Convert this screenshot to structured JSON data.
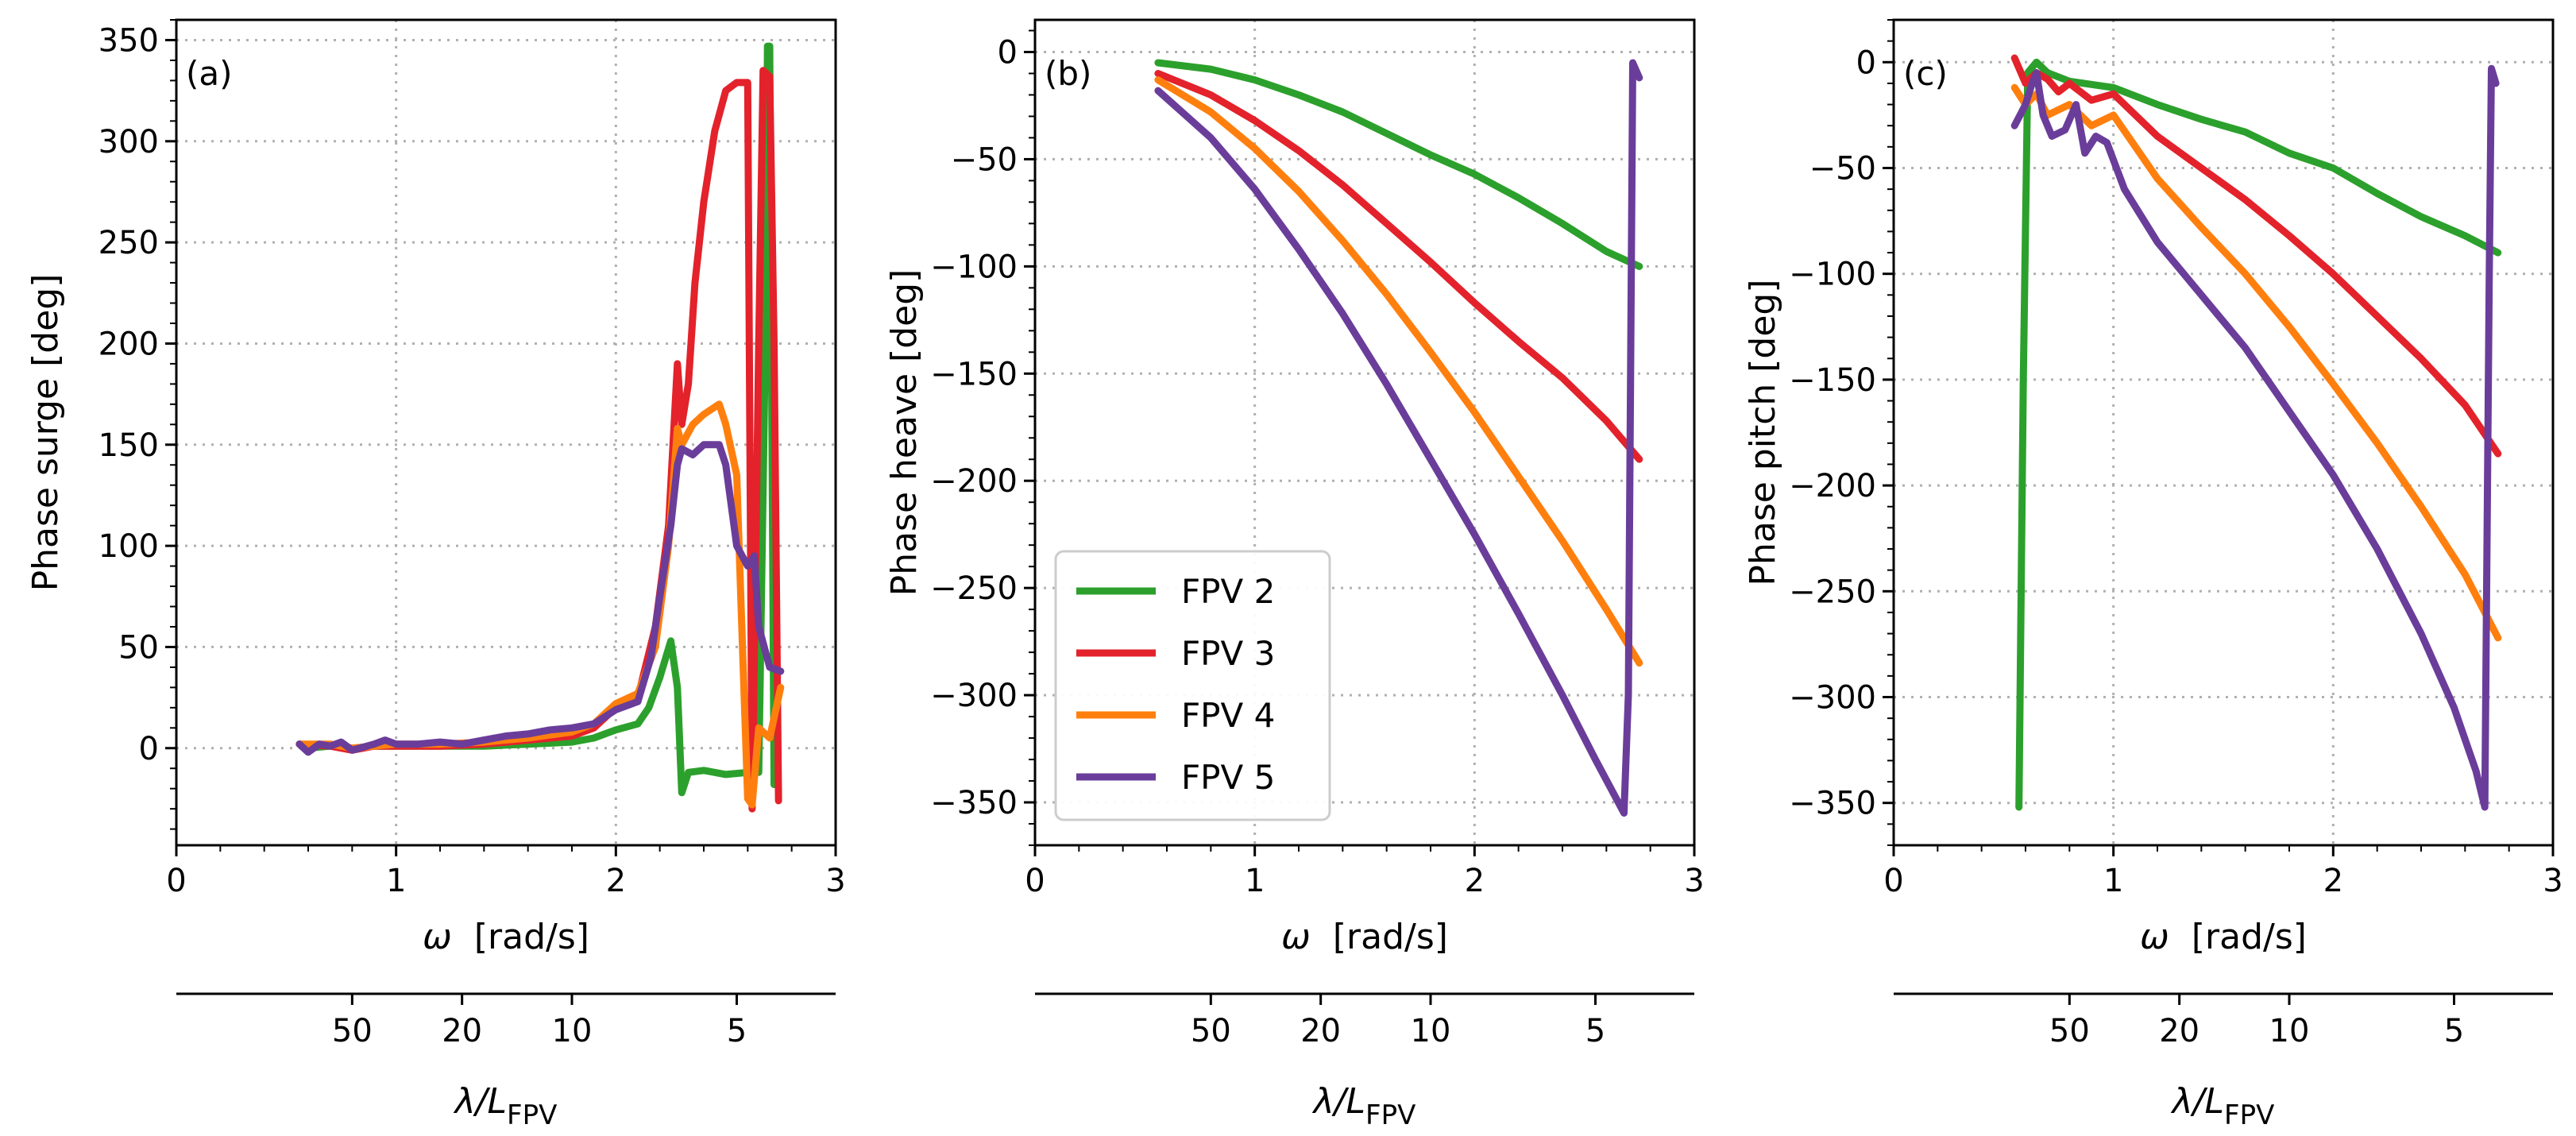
{
  "chart_data": [
    {
      "type": "line",
      "panel_label": "(a)",
      "ylabel": "Phase surge [deg]",
      "xlabel_symbol": "ω",
      "xlabel_unit": "[rad/s]",
      "secondary_xlabel_main": "λ/L",
      "secondary_xlabel_sub": "FPV",
      "xlim": [
        0,
        3
      ],
      "ylim": [
        -48,
        360
      ],
      "xticks": [
        0,
        1,
        2,
        3
      ],
      "yticks": [
        0,
        50,
        100,
        150,
        200,
        250,
        300,
        350
      ],
      "secondary_ticks": [
        {
          "label": "50",
          "omega": 0.8
        },
        {
          "label": "20",
          "omega": 1.3
        },
        {
          "label": "10",
          "omega": 1.8
        },
        {
          "label": "5",
          "omega": 2.55
        }
      ],
      "grid": true,
      "series": [
        {
          "name": "FPV 2",
          "points": [
            [
              0.56,
              2
            ],
            [
              0.6,
              0
            ],
            [
              0.7,
              1
            ],
            [
              0.8,
              0
            ],
            [
              0.9,
              1
            ],
            [
              1.0,
              1
            ],
            [
              1.2,
              1
            ],
            [
              1.4,
              1
            ],
            [
              1.6,
              2
            ],
            [
              1.8,
              3
            ],
            [
              1.9,
              5
            ],
            [
              2.0,
              9
            ],
            [
              2.1,
              12
            ],
            [
              2.15,
              20
            ],
            [
              2.2,
              35
            ],
            [
              2.25,
              53
            ],
            [
              2.28,
              30
            ],
            [
              2.3,
              -22
            ],
            [
              2.33,
              -12
            ],
            [
              2.4,
              -11
            ],
            [
              2.5,
              -13
            ],
            [
              2.6,
              -12
            ],
            [
              2.65,
              -12
            ],
            [
              2.68,
              200
            ],
            [
              2.69,
              347
            ],
            [
              2.7,
              347
            ],
            [
              2.72,
              -18
            ]
          ]
        },
        {
          "name": "FPV 3",
          "points": [
            [
              0.56,
              2
            ],
            [
              0.7,
              1
            ],
            [
              0.8,
              -1
            ],
            [
              0.9,
              1
            ],
            [
              1.0,
              1
            ],
            [
              1.2,
              1
            ],
            [
              1.4,
              2
            ],
            [
              1.6,
              4
            ],
            [
              1.8,
              6
            ],
            [
              1.9,
              10
            ],
            [
              2.0,
              20
            ],
            [
              2.1,
              25
            ],
            [
              2.18,
              60
            ],
            [
              2.24,
              110
            ],
            [
              2.28,
              190
            ],
            [
              2.3,
              160
            ],
            [
              2.33,
              180
            ],
            [
              2.36,
              230
            ],
            [
              2.4,
              270
            ],
            [
              2.45,
              305
            ],
            [
              2.5,
              325
            ],
            [
              2.55,
              329
            ],
            [
              2.6,
              329
            ],
            [
              2.62,
              -30
            ],
            [
              2.65,
              200
            ],
            [
              2.67,
              335
            ],
            [
              2.7,
              332
            ],
            [
              2.72,
              200
            ],
            [
              2.74,
              -26
            ]
          ]
        },
        {
          "name": "FPV 4",
          "points": [
            [
              0.56,
              2
            ],
            [
              0.7,
              2
            ],
            [
              0.8,
              0
            ],
            [
              0.9,
              1
            ],
            [
              1.0,
              2
            ],
            [
              1.2,
              2
            ],
            [
              1.4,
              3
            ],
            [
              1.6,
              5
            ],
            [
              1.8,
              8
            ],
            [
              1.9,
              12
            ],
            [
              2.0,
              22
            ],
            [
              2.1,
              27
            ],
            [
              2.18,
              50
            ],
            [
              2.24,
              100
            ],
            [
              2.28,
              158
            ],
            [
              2.3,
              150
            ],
            [
              2.35,
              160
            ],
            [
              2.4,
              165
            ],
            [
              2.47,
              170
            ],
            [
              2.5,
              160
            ],
            [
              2.55,
              135
            ],
            [
              2.57,
              70
            ],
            [
              2.6,
              -25
            ],
            [
              2.62,
              -28
            ],
            [
              2.65,
              10
            ],
            [
              2.7,
              5
            ],
            [
              2.75,
              30
            ]
          ]
        },
        {
          "name": "FPV 5",
          "points": [
            [
              0.56,
              2
            ],
            [
              0.6,
              -2
            ],
            [
              0.65,
              2
            ],
            [
              0.7,
              1
            ],
            [
              0.75,
              3
            ],
            [
              0.8,
              -1
            ],
            [
              0.9,
              2
            ],
            [
              0.95,
              4
            ],
            [
              1.0,
              2
            ],
            [
              1.1,
              2
            ],
            [
              1.2,
              3
            ],
            [
              1.3,
              2
            ],
            [
              1.4,
              4
            ],
            [
              1.5,
              6
            ],
            [
              1.6,
              7
            ],
            [
              1.7,
              9
            ],
            [
              1.8,
              10
            ],
            [
              1.9,
              12
            ],
            [
              2.0,
              19
            ],
            [
              2.1,
              23
            ],
            [
              2.16,
              45
            ],
            [
              2.2,
              75
            ],
            [
              2.25,
              110
            ],
            [
              2.28,
              140
            ],
            [
              2.3,
              148
            ],
            [
              2.35,
              145
            ],
            [
              2.4,
              150
            ],
            [
              2.47,
              150
            ],
            [
              2.5,
              140
            ],
            [
              2.55,
              100
            ],
            [
              2.6,
              90
            ],
            [
              2.63,
              95
            ],
            [
              2.65,
              60
            ],
            [
              2.7,
              40
            ],
            [
              2.75,
              38
            ]
          ]
        }
      ]
    },
    {
      "type": "line",
      "panel_label": "(b)",
      "ylabel": "Phase heave [deg]",
      "xlabel_symbol": "ω",
      "xlabel_unit": "[rad/s]",
      "secondary_xlabel_main": "λ/L",
      "secondary_xlabel_sub": "FPV",
      "xlim": [
        0,
        3
      ],
      "ylim": [
        -370,
        15
      ],
      "xticks": [
        0,
        1,
        2,
        3
      ],
      "yticks": [
        0,
        -50,
        -100,
        -150,
        -200,
        -250,
        -300,
        -350
      ],
      "secondary_ticks": [
        {
          "label": "50",
          "omega": 0.8
        },
        {
          "label": "20",
          "omega": 1.3
        },
        {
          "label": "10",
          "omega": 1.8
        },
        {
          "label": "5",
          "omega": 2.55
        }
      ],
      "grid": true,
      "legend": {
        "entries": [
          "FPV 2",
          "FPV 3",
          "FPV 4",
          "FPV 5"
        ],
        "placement": "lower-left"
      },
      "series": [
        {
          "name": "FPV 2",
          "points": [
            [
              0.56,
              -5
            ],
            [
              0.8,
              -8
            ],
            [
              1.0,
              -13
            ],
            [
              1.2,
              -20
            ],
            [
              1.4,
              -28
            ],
            [
              1.6,
              -38
            ],
            [
              1.8,
              -48
            ],
            [
              2.0,
              -57
            ],
            [
              2.2,
              -68
            ],
            [
              2.4,
              -80
            ],
            [
              2.6,
              -93
            ],
            [
              2.75,
              -100
            ]
          ]
        },
        {
          "name": "FPV 3",
          "points": [
            [
              0.56,
              -10
            ],
            [
              0.8,
              -20
            ],
            [
              1.0,
              -32
            ],
            [
              1.2,
              -46
            ],
            [
              1.4,
              -62
            ],
            [
              1.6,
              -80
            ],
            [
              1.8,
              -98
            ],
            [
              2.0,
              -117
            ],
            [
              2.2,
              -135
            ],
            [
              2.4,
              -152
            ],
            [
              2.6,
              -172
            ],
            [
              2.75,
              -190
            ]
          ]
        },
        {
          "name": "FPV 4",
          "points": [
            [
              0.56,
              -13
            ],
            [
              0.8,
              -28
            ],
            [
              1.0,
              -45
            ],
            [
              1.2,
              -65
            ],
            [
              1.4,
              -88
            ],
            [
              1.6,
              -113
            ],
            [
              1.8,
              -140
            ],
            [
              2.0,
              -168
            ],
            [
              2.2,
              -198
            ],
            [
              2.4,
              -228
            ],
            [
              2.6,
              -260
            ],
            [
              2.75,
              -285
            ]
          ]
        },
        {
          "name": "FPV 5",
          "points": [
            [
              0.56,
              -18
            ],
            [
              0.8,
              -40
            ],
            [
              1.0,
              -64
            ],
            [
              1.2,
              -92
            ],
            [
              1.4,
              -122
            ],
            [
              1.6,
              -155
            ],
            [
              1.8,
              -190
            ],
            [
              2.0,
              -225
            ],
            [
              2.2,
              -262
            ],
            [
              2.4,
              -300
            ],
            [
              2.55,
              -330
            ],
            [
              2.68,
              -355
            ],
            [
              2.7,
              -300
            ],
            [
              2.72,
              -5
            ],
            [
              2.75,
              -12
            ]
          ]
        }
      ]
    },
    {
      "type": "line",
      "panel_label": "(c)",
      "ylabel": "Phase pitch [deg]",
      "xlabel_symbol": "ω",
      "xlabel_unit": "[rad/s]",
      "secondary_xlabel_main": "λ/L",
      "secondary_xlabel_sub": "FPV",
      "xlim": [
        0,
        3
      ],
      "ylim": [
        -370,
        20
      ],
      "xticks": [
        0,
        1,
        2,
        3
      ],
      "yticks": [
        0,
        -50,
        -100,
        -150,
        -200,
        -250,
        -300,
        -350
      ],
      "secondary_ticks": [
        {
          "label": "50",
          "omega": 0.8
        },
        {
          "label": "20",
          "omega": 1.3
        },
        {
          "label": "10",
          "omega": 1.8
        },
        {
          "label": "5",
          "omega": 2.55
        }
      ],
      "grid": true,
      "series": [
        {
          "name": "FPV 2",
          "points": [
            [
              0.57,
              -352
            ],
            [
              0.59,
              -150
            ],
            [
              0.61,
              -5
            ],
            [
              0.65,
              0
            ],
            [
              0.7,
              -5
            ],
            [
              0.8,
              -9
            ],
            [
              1.0,
              -12
            ],
            [
              1.2,
              -20
            ],
            [
              1.4,
              -27
            ],
            [
              1.6,
              -33
            ],
            [
              1.8,
              -43
            ],
            [
              2.0,
              -50
            ],
            [
              2.2,
              -62
            ],
            [
              2.4,
              -73
            ],
            [
              2.6,
              -82
            ],
            [
              2.75,
              -90
            ]
          ]
        },
        {
          "name": "FPV 3",
          "points": [
            [
              0.55,
              2
            ],
            [
              0.6,
              -10
            ],
            [
              0.65,
              -5
            ],
            [
              0.7,
              -8
            ],
            [
              0.75,
              -14
            ],
            [
              0.8,
              -10
            ],
            [
              0.9,
              -18
            ],
            [
              1.0,
              -15
            ],
            [
              1.2,
              -35
            ],
            [
              1.4,
              -50
            ],
            [
              1.6,
              -65
            ],
            [
              1.8,
              -82
            ],
            [
              2.0,
              -100
            ],
            [
              2.2,
              -120
            ],
            [
              2.4,
              -140
            ],
            [
              2.6,
              -162
            ],
            [
              2.75,
              -185
            ]
          ]
        },
        {
          "name": "FPV 4",
          "points": [
            [
              0.55,
              -12
            ],
            [
              0.6,
              -20
            ],
            [
              0.65,
              -15
            ],
            [
              0.7,
              -25
            ],
            [
              0.8,
              -20
            ],
            [
              0.9,
              -30
            ],
            [
              1.0,
              -25
            ],
            [
              1.2,
              -55
            ],
            [
              1.4,
              -78
            ],
            [
              1.6,
              -100
            ],
            [
              1.8,
              -125
            ],
            [
              2.0,
              -152
            ],
            [
              2.2,
              -180
            ],
            [
              2.4,
              -210
            ],
            [
              2.6,
              -242
            ],
            [
              2.75,
              -272
            ]
          ]
        },
        {
          "name": "FPV 5",
          "points": [
            [
              0.55,
              -30
            ],
            [
              0.6,
              -20
            ],
            [
              0.63,
              -10
            ],
            [
              0.65,
              -5
            ],
            [
              0.68,
              -25
            ],
            [
              0.72,
              -35
            ],
            [
              0.78,
              -32
            ],
            [
              0.83,
              -20
            ],
            [
              0.87,
              -43
            ],
            [
              0.92,
              -35
            ],
            [
              0.97,
              -38
            ],
            [
              1.05,
              -60
            ],
            [
              1.2,
              -85
            ],
            [
              1.4,
              -110
            ],
            [
              1.6,
              -135
            ],
            [
              1.8,
              -165
            ],
            [
              2.0,
              -195
            ],
            [
              2.2,
              -230
            ],
            [
              2.4,
              -270
            ],
            [
              2.55,
              -305
            ],
            [
              2.65,
              -335
            ],
            [
              2.69,
              -352
            ],
            [
              2.71,
              -100
            ],
            [
              2.72,
              -3
            ],
            [
              2.74,
              -10
            ]
          ]
        }
      ]
    }
  ],
  "legend_colors": {
    "FPV 2": "#2ca02c",
    "FPV 3": "#e3222b",
    "FPV 4": "#ff7f0e",
    "FPV 5": "#6a3d9a"
  }
}
